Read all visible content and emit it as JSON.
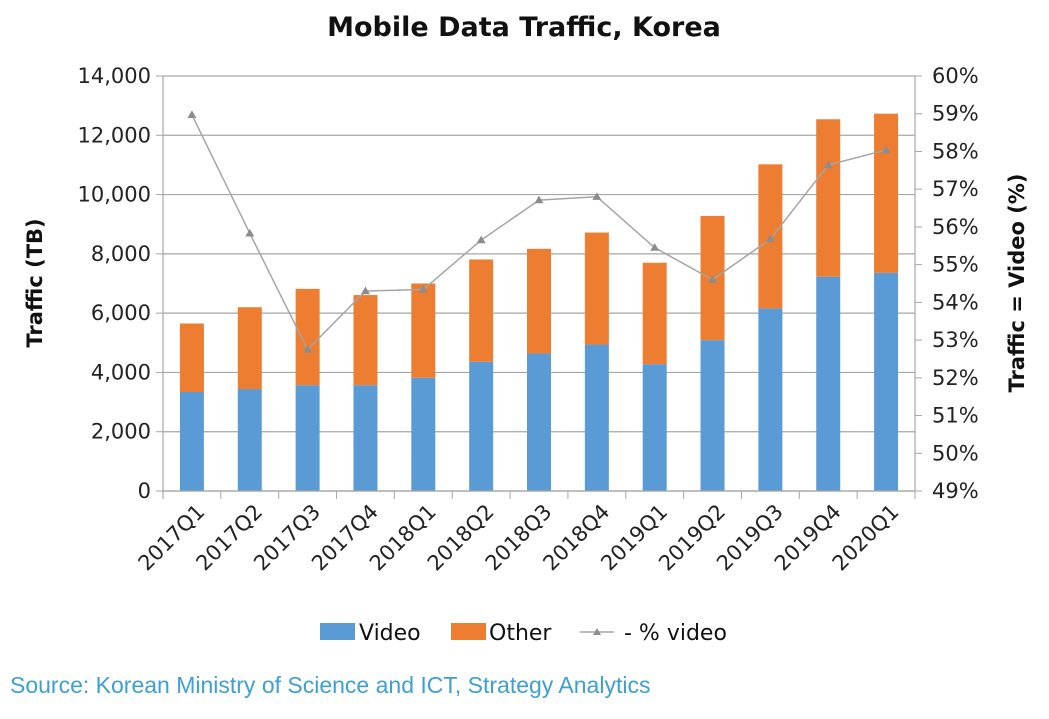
{
  "chart_data": {
    "type": "bar",
    "stacked": true,
    "title": "Mobile Data Traffic, Korea",
    "xlabel": "",
    "ylabel": "Traffic (TB)",
    "y2label": "Traffic = Video (%)",
    "ylim": [
      0,
      14000
    ],
    "y2lim": [
      49,
      60
    ],
    "yticks": [
      0,
      2000,
      4000,
      6000,
      8000,
      10000,
      12000,
      14000
    ],
    "ytick_labels": [
      "0",
      "2,000",
      "4,000",
      "6,000",
      "8,000",
      "10,000",
      "12,000",
      "14,000"
    ],
    "y2ticks": [
      49,
      50,
      51,
      52,
      53,
      54,
      55,
      56,
      57,
      58,
      59,
      60
    ],
    "y2tick_labels": [
      "49%",
      "50%",
      "51%",
      "52%",
      "53%",
      "54%",
      "55%",
      "56%",
      "57%",
      "58%",
      "59%",
      "60%"
    ],
    "grid": true,
    "legend_position": "bottom",
    "categories": [
      "2017Q1",
      "2017Q2",
      "2017Q3",
      "2017Q4",
      "2018Q1",
      "2018Q2",
      "2018Q3",
      "2018Q4",
      "2019Q1",
      "2019Q2",
      "2019Q3",
      "2019Q4",
      "2020Q1"
    ],
    "series": [
      {
        "name": "Video",
        "type": "bar",
        "axis": "left",
        "color": "#5b9bd5",
        "values": [
          3340,
          3440,
          3570,
          3570,
          3820,
          4360,
          4640,
          4940,
          4280,
          5090,
          6160,
          7230,
          7360
        ]
      },
      {
        "name": "Other",
        "type": "bar",
        "axis": "left",
        "color": "#ed7d31",
        "values": [
          2310,
          2760,
          3250,
          3040,
          3180,
          3450,
          3530,
          3780,
          3420,
          4190,
          4860,
          5310,
          5370
        ]
      },
      {
        "name": "- % video",
        "type": "line",
        "axis": "right",
        "color": "#a5a5a5",
        "marker": "triangle",
        "values": [
          58.97,
          55.83,
          52.75,
          54.3,
          54.34,
          55.65,
          56.71,
          56.8,
          55.45,
          54.6,
          55.68,
          57.64,
          58.04
        ]
      }
    ]
  },
  "source_text": "Source: Korean Ministry of Science and ICT, Strategy Analytics"
}
